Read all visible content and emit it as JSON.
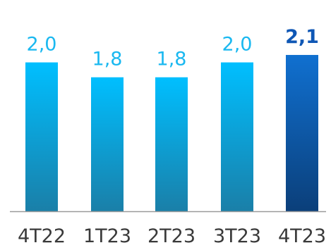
{
  "chart_data": {
    "type": "bar",
    "title": "",
    "xlabel": "",
    "ylabel": "",
    "categories": [
      "4T22",
      "1T23",
      "2T23",
      "3T23",
      "4T23"
    ],
    "values": [
      2.0,
      1.8,
      1.8,
      2.0,
      2.1
    ],
    "value_labels": [
      "2,0",
      "1,8",
      "1,8",
      "2,0",
      "2,1"
    ],
    "highlight_index": 4,
    "ylim": [
      0,
      2.1
    ],
    "grid": false,
    "legend": "none",
    "colors": {
      "bar_top": "#00bfff",
      "bar_bottom": "#1a7fa8",
      "highlight_top": "#1070d0",
      "highlight_bottom": "#0b3f7a",
      "label": "#1ab8f0",
      "highlight_label": "#0f57b5",
      "tick": "#3a3a3a",
      "axis": "#9a9a9a"
    }
  }
}
